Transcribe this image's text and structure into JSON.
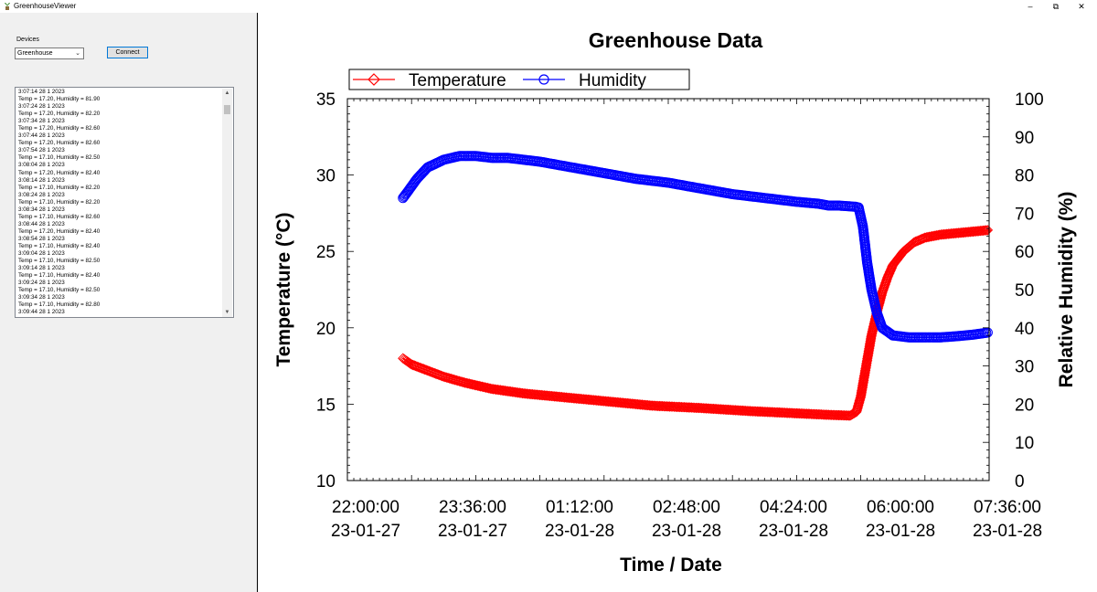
{
  "window": {
    "title": "GreenhouseViewer",
    "controls": {
      "minimize": "–",
      "restore": "⧉",
      "close": "✕"
    }
  },
  "left_panel": {
    "devices_label": "Devices",
    "device_select": {
      "value": "Greenhouse"
    },
    "connect_label": "Connect",
    "log_lines": [
      "3:07:14 28 1 2023",
      "Temp = 17.20, Humidity = 81.90",
      "3:07:24 28 1 2023",
      "Temp = 17.20, Humidity = 82.20",
      "3:07:34 28 1 2023",
      "Temp = 17.20, Humidity = 82.60",
      "3:07:44 28 1 2023",
      "Temp = 17.20, Humidity = 82.60",
      "3:07:54 28 1 2023",
      "Temp = 17.10, Humidity = 82.50",
      "3:08:04 28 1 2023",
      "Temp = 17.20, Humidity = 82.40",
      "3:08:14 28 1 2023",
      "Temp = 17.10, Humidity = 82.20",
      "3:08:24 28 1 2023",
      "Temp = 17.10, Humidity = 82.20",
      "3:08:34 28 1 2023",
      "Temp = 17.10, Humidity = 82.60",
      "3:08:44 28 1 2023",
      "Temp = 17.20, Humidity = 82.40",
      "3:08:54 28 1 2023",
      "Temp = 17.10, Humidity = 82.40",
      "3:09:04 28 1 2023",
      "Temp = 17.10, Humidity = 82.50",
      "3:09:14 28 1 2023",
      "Temp = 17.10, Humidity = 82.40",
      "3:09:24 28 1 2023",
      "Temp = 17.10, Humidity = 82.50",
      "3:09:34 28 1 2023",
      "Temp = 17.10, Humidity = 82.80",
      "3:09:44 28 1 2023"
    ]
  },
  "chart_data": {
    "type": "line",
    "title": "Greenhouse Data",
    "xlabel": "Time / Date",
    "ylabel": "Temperature (°C)",
    "y2label": "Relative Humidity (%)",
    "ylim": [
      10,
      35
    ],
    "y2lim": [
      0,
      100
    ],
    "y_ticks": [
      "10",
      "15",
      "20",
      "25",
      "30",
      "35"
    ],
    "y2_ticks": [
      "0",
      "10",
      "20",
      "30",
      "40",
      "50",
      "60",
      "70",
      "80",
      "90",
      "100"
    ],
    "x_ticks": [
      {
        "time": "22:00:00",
        "date": "23-01-27"
      },
      {
        "time": "23:36:00",
        "date": "23-01-27"
      },
      {
        "time": "01:12:00",
        "date": "23-01-28"
      },
      {
        "time": "02:48:00",
        "date": "23-01-28"
      },
      {
        "time": "04:24:00",
        "date": "23-01-28"
      },
      {
        "time": "06:00:00",
        "date": "23-01-28"
      },
      {
        "time": "07:36:00",
        "date": "23-01-28"
      }
    ],
    "legend_position": "top-left",
    "series": [
      {
        "name": "Temperature",
        "axis": "left",
        "color": "#ff0000",
        "marker": "diamond",
        "x": [
          "2023-01-27 22:52",
          "2023-01-27 23:00",
          "2023-01-27 23:15",
          "2023-01-27 23:30",
          "2023-01-27 23:50",
          "2023-01-28 00:15",
          "2023-01-28 00:45",
          "2023-01-28 01:15",
          "2023-01-28 02:00",
          "2023-01-28 02:45",
          "2023-01-28 03:30",
          "2023-01-28 04:15",
          "2023-01-28 05:00",
          "2023-01-28 05:30",
          "2023-01-28 05:50",
          "2023-01-28 05:56",
          "2023-01-28 06:00",
          "2023-01-28 06:05",
          "2023-01-28 06:10",
          "2023-01-28 06:15",
          "2023-01-28 06:20",
          "2023-01-28 06:25",
          "2023-01-28 06:30",
          "2023-01-28 06:40",
          "2023-01-28 06:50",
          "2023-01-28 07:00",
          "2023-01-28 07:15",
          "2023-01-28 07:30",
          "2023-01-28 07:45",
          "2023-01-28 08:00"
        ],
        "y": [
          18.0,
          17.6,
          17.2,
          16.8,
          16.4,
          16.0,
          15.7,
          15.5,
          15.2,
          14.9,
          14.75,
          14.55,
          14.4,
          14.3,
          14.25,
          14.5,
          15.5,
          17.5,
          19.5,
          21.0,
          22.3,
          23.3,
          24.1,
          25.0,
          25.6,
          25.9,
          26.1,
          26.2,
          26.3,
          26.4
        ]
      },
      {
        "name": "Humidity",
        "axis": "right",
        "color": "#0000ff",
        "marker": "circle",
        "x": [
          "2023-01-27 22:52",
          "2023-01-27 22:56",
          "2023-01-27 23:05",
          "2023-01-27 23:15",
          "2023-01-27 23:30",
          "2023-01-27 23:45",
          "2023-01-28 00:00",
          "2023-01-28 00:15",
          "2023-01-28 00:30",
          "2023-01-28 01:00",
          "2023-01-28 01:30",
          "2023-01-28 02:00",
          "2023-01-28 02:30",
          "2023-01-28 03:00",
          "2023-01-28 03:30",
          "2023-01-28 04:00",
          "2023-01-28 04:30",
          "2023-01-28 05:00",
          "2023-01-28 05:20",
          "2023-01-28 05:30",
          "2023-01-28 05:40",
          "2023-01-28 05:55",
          "2023-01-28 05:58",
          "2023-01-28 06:02",
          "2023-01-28 06:06",
          "2023-01-28 06:10",
          "2023-01-28 06:15",
          "2023-01-28 06:20",
          "2023-01-28 06:30",
          "2023-01-28 06:45",
          "2023-01-28 07:00",
          "2023-01-28 07:15",
          "2023-01-28 07:30",
          "2023-01-28 07:45",
          "2023-01-28 08:00"
        ],
        "y": [
          74,
          75.5,
          79,
          82,
          84,
          85,
          85,
          84.5,
          84.5,
          83.5,
          82,
          80.5,
          79,
          78,
          76.5,
          75,
          74,
          73,
          72.5,
          72,
          72,
          71.7,
          71.5,
          66.5,
          57,
          50,
          44,
          40,
          38,
          37.5,
          37.5,
          37.5,
          37.8,
          38.2,
          38.8
        ]
      }
    ]
  }
}
